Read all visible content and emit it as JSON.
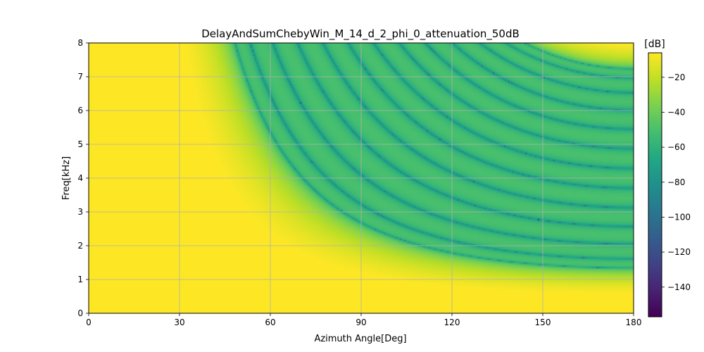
{
  "chart_data": {
    "type": "heatmap",
    "title": "DelayAndSumChebyWin_M_14_d_2_phi_0_attenuation_50dB",
    "xlabel": "Azimuth Angle[Deg]",
    "ylabel": "Freq[kHz]",
    "xlim": [
      0,
      180
    ],
    "ylim": [
      0,
      8
    ],
    "xticks": [
      0,
      30,
      60,
      90,
      120,
      150,
      180
    ],
    "yticks": [
      0,
      1,
      2,
      3,
      4,
      5,
      6,
      7,
      8
    ],
    "grid": true,
    "colormap": "viridis",
    "colorbar": {
      "label": "[dB]",
      "range": [
        -157,
        -6
      ],
      "ticks": [
        -20,
        -40,
        -60,
        -80,
        -100,
        -120,
        -140
      ],
      "tick_labels": [
        "−20",
        "−40",
        "−60",
        "−80",
        "−100",
        "−120",
        "−140"
      ]
    },
    "array": {
      "num_mics": 14,
      "spacing_cm": 2,
      "steer_angle_deg": 0,
      "sidelobe_attenuation_db": 50
    }
  }
}
